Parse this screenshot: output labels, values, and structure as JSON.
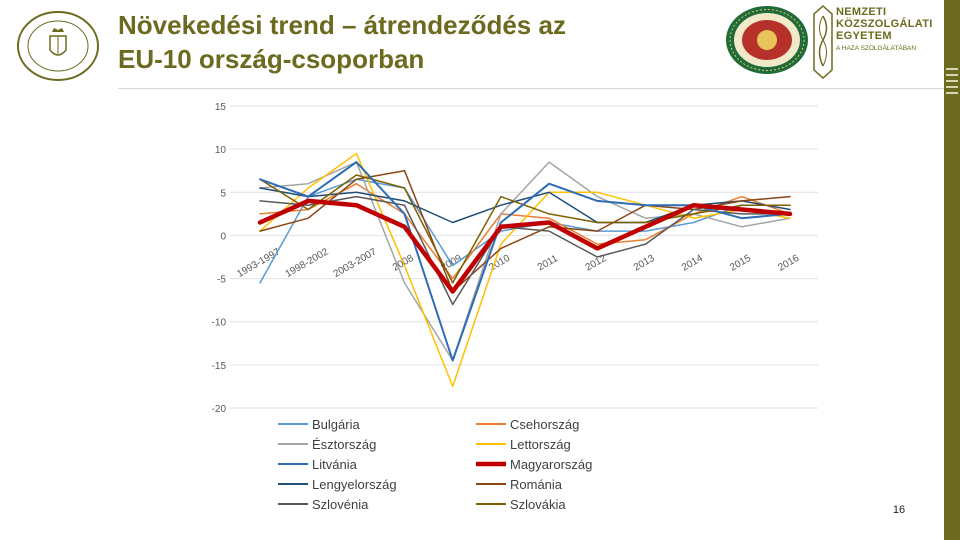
{
  "slide": {
    "title_line1": "Növekedési trend – átrendeződés az",
    "title_line2": "EU-10 ország-csoporban",
    "page_number": "16"
  },
  "logo": {
    "line1": "NEMZETI",
    "line2": "KÖZSZOLGÁLATI",
    "line3": "EGYETEM",
    "tagline": "A HAZA SZOLGÁLATÁBAN"
  },
  "colors": {
    "accent": "#6b6a1f",
    "seal_green": "#1f6b3a",
    "seal_red": "#b5312a"
  },
  "chart_data": {
    "type": "line",
    "title": "",
    "xlabel": "",
    "ylabel": "",
    "ylim": [
      -20,
      15
    ],
    "yticks": [
      15,
      10,
      5,
      0,
      -5,
      -10,
      -15,
      -20
    ],
    "ytick_labels": [
      "15",
      "10",
      "5",
      "0",
      "-5",
      "-10",
      "-15",
      "-20"
    ],
    "categories": [
      "1993-1997",
      "1998-2002",
      "2003-2007",
      "2008",
      "2009",
      "2010",
      "2011",
      "2012",
      "2013",
      "2014",
      "2015",
      "2016"
    ],
    "grid": true,
    "legend": "bottom",
    "series": [
      {
        "name": "Bulgária",
        "color": "#5b9bd5",
        "width": 1.5,
        "values": [
          -5.5,
          4.5,
          6.5,
          5.5,
          -3.5,
          0.5,
          1.5,
          0.5,
          0.5,
          1.5,
          3.5,
          3.5
        ]
      },
      {
        "name": "Csehország",
        "color": "#ed7d31",
        "width": 1.5,
        "values": [
          2.5,
          3.0,
          6.0,
          2.5,
          -5.0,
          2.5,
          2.0,
          -1.0,
          -0.5,
          2.5,
          4.5,
          2.5
        ]
      },
      {
        "name": "Észtország",
        "color": "#a5a5a5",
        "width": 1.5,
        "values": [
          5.5,
          6.0,
          8.5,
          -5.5,
          -14.5,
          2.5,
          8.5,
          4.5,
          2.0,
          2.5,
          1.0,
          2.0
        ]
      },
      {
        "name": "Lettország",
        "color": "#ffc000",
        "width": 1.5,
        "values": [
          0.5,
          5.5,
          9.5,
          -3.5,
          -17.5,
          -1.0,
          5.0,
          5.0,
          3.5,
          2.0,
          3.0,
          2.0
        ]
      },
      {
        "name": "Litvánia",
        "color": "#2e6db4",
        "width": 2.0,
        "values": [
          6.5,
          4.5,
          8.5,
          2.5,
          -14.5,
          1.5,
          6.0,
          4.0,
          3.5,
          3.5,
          2.0,
          2.5
        ]
      },
      {
        "name": "Magyarország",
        "color": "#c00000",
        "width": 4.5,
        "values": [
          1.5,
          4.0,
          3.5,
          1.0,
          -6.5,
          1.0,
          1.5,
          -1.5,
          1.0,
          3.5,
          3.0,
          2.5
        ]
      },
      {
        "name": "Lengyelország",
        "color": "#1f4e79",
        "width": 1.5,
        "values": [
          5.5,
          4.5,
          5.0,
          4.0,
          1.5,
          3.5,
          5.0,
          1.5,
          1.5,
          3.5,
          4.0,
          3.0
        ]
      },
      {
        "name": "Románia",
        "color": "#8b4513",
        "width": 1.5,
        "values": [
          0.5,
          2.0,
          6.5,
          7.5,
          -6.5,
          -1.5,
          1.0,
          0.5,
          3.5,
          3.0,
          4.0,
          4.5
        ]
      },
      {
        "name": "Szlovénia",
        "color": "#595959",
        "width": 1.5,
        "values": [
          4.0,
          3.5,
          4.5,
          3.5,
          -8.0,
          1.0,
          0.5,
          -2.5,
          -1.0,
          3.0,
          2.5,
          2.5
        ]
      },
      {
        "name": "Szlovákia",
        "color": "#7f6000",
        "width": 1.5,
        "values": [
          6.5,
          3.0,
          7.0,
          5.5,
          -5.5,
          4.5,
          2.5,
          1.5,
          1.5,
          2.5,
          3.5,
          3.5
        ]
      }
    ]
  }
}
